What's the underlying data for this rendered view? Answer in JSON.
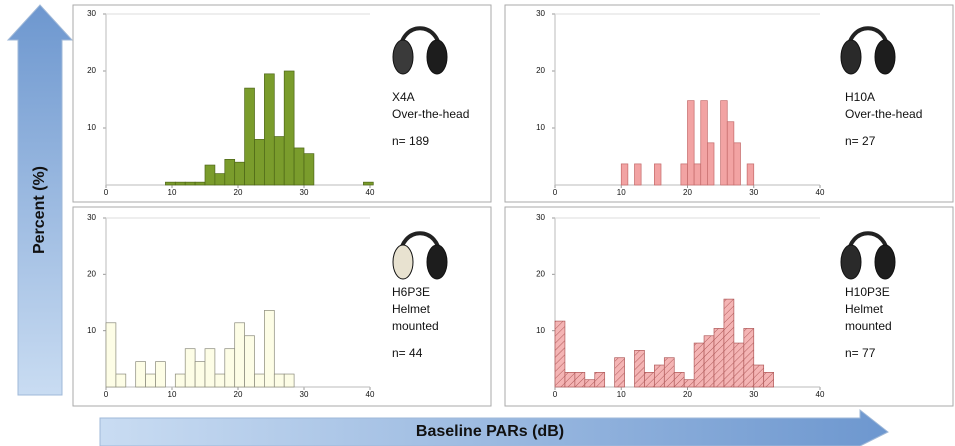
{
  "shared_axes": {
    "ylabel": "Percent (%)",
    "xlabel": "Baseline PARs (dB)"
  },
  "chart_data": [
    {
      "type": "histogram",
      "color": "#7a9c2c",
      "edgecolor": "#4d6618",
      "hatch": false,
      "bins": [
        9,
        10.5,
        12,
        13.5,
        15,
        16.5,
        18,
        19.5,
        21,
        22.5,
        24,
        25.5,
        27,
        28.5,
        30,
        31.5,
        33,
        34.5,
        36,
        37.5,
        39,
        40.5
      ],
      "values": [
        0.5,
        0.5,
        0.5,
        0.5,
        3.5,
        2,
        4.5,
        4,
        17,
        8,
        19.5,
        8.5,
        20,
        6.5,
        5.5,
        0,
        0,
        0,
        0,
        0,
        0.5
      ],
      "xlim": [
        0,
        40
      ],
      "xticks": [
        0,
        10,
        20,
        30,
        40
      ],
      "ylim": [
        0,
        30
      ],
      "yticks": [
        10,
        20,
        30
      ],
      "annotations": [
        "X4A",
        "Over-the-head",
        "n= 189"
      ]
    },
    {
      "type": "histogram",
      "color": "#f2a3a3",
      "edgecolor": "#c46a6a",
      "hatch": false,
      "bins": [
        10,
        11,
        12,
        13,
        14,
        15,
        16,
        17,
        18,
        19,
        20,
        21,
        22,
        23,
        24,
        25,
        26,
        27,
        28,
        29,
        30,
        31
      ],
      "values": [
        3.7,
        0,
        3.7,
        0,
        0,
        3.7,
        0,
        0,
        0,
        3.7,
        14.8,
        3.7,
        14.8,
        7.4,
        0,
        14.8,
        11.1,
        7.4,
        0,
        3.7,
        0
      ],
      "xlim": [
        0,
        40
      ],
      "xticks": [
        0,
        10,
        20,
        30,
        40
      ],
      "ylim": [
        0,
        30
      ],
      "yticks": [
        10,
        20,
        30
      ],
      "annotations": [
        "H10A",
        "Over-the-head",
        "n= 27"
      ]
    },
    {
      "type": "histogram",
      "color": "#fdfde6",
      "edgecolor": "#8a8a7a",
      "hatch": false,
      "bins": [
        0,
        1.5,
        3,
        4.5,
        6,
        7.5,
        9,
        10.5,
        12,
        13.5,
        15,
        16.5,
        18,
        19.5,
        21,
        22.5,
        24,
        25.5,
        27,
        28.5
      ],
      "values": [
        11.4,
        2.3,
        0,
        4.5,
        2.3,
        4.5,
        0,
        2.3,
        6.8,
        4.5,
        6.8,
        2.3,
        6.8,
        11.4,
        9.1,
        2.3,
        13.6,
        2.3,
        2.3
      ],
      "xlim": [
        0,
        40
      ],
      "xticks": [
        0,
        10,
        20,
        30,
        40
      ],
      "ylim": [
        0,
        30
      ],
      "yticks": [
        10,
        20,
        30
      ],
      "annotations": [
        "H6P3E",
        "Helmet",
        "mounted",
        "n= 44"
      ]
    },
    {
      "type": "histogram",
      "color": "#f4b4b4",
      "edgecolor": "#b05a5a",
      "hatch": true,
      "bins": [
        0,
        1.5,
        3,
        4.5,
        6,
        7.5,
        9,
        10.5,
        12,
        13.5,
        15,
        16.5,
        18,
        19.5,
        21,
        22.5,
        24,
        25.5,
        27,
        28.5,
        30,
        31.5,
        33
      ],
      "values": [
        11.7,
        2.6,
        2.6,
        1.3,
        2.6,
        0,
        5.2,
        0,
        6.5,
        2.6,
        3.9,
        5.2,
        2.6,
        1.3,
        7.8,
        9.1,
        10.4,
        15.6,
        7.8,
        10.4,
        3.9,
        2.6
      ],
      "xlim": [
        0,
        40
      ],
      "xticks": [
        0,
        10,
        20,
        30,
        40
      ],
      "ylim": [
        0,
        30
      ],
      "yticks": [
        10,
        20,
        30
      ],
      "annotations": [
        "H10P3E",
        "Helmet",
        "mounted",
        "n= 77"
      ]
    }
  ]
}
